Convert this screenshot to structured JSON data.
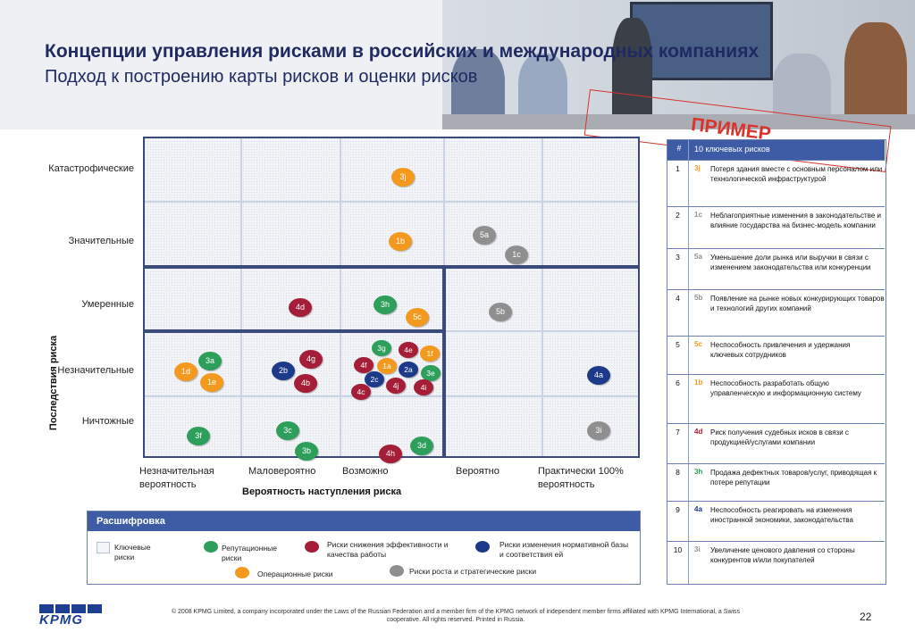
{
  "header": {
    "title_line1": "Концепции управления рисками в российских и международных компаниях",
    "title_line2": "Подход к построению карты рисков и оценки рисков",
    "stamp": "ПРИМЕР"
  },
  "matrix": {
    "y_axis_label": "Последствия риска",
    "x_axis_label": "Вероятность наступления риска",
    "rows": [
      "Катастрофические",
      "Значительные",
      "Умеренные",
      "Незначительные",
      "Ничтожные"
    ],
    "columns": [
      "Незначительная вероятность",
      "Маловероятно",
      "Возможно",
      "Вероятно",
      "Практически 100% вероятность"
    ],
    "colors": {
      "reputational": "#2e9e5b",
      "operational": "#f39a1e",
      "efficiency": "#a51d36",
      "regulatory": "#1d3a8a",
      "strategic": "#8f8f8f"
    },
    "risks": [
      {
        "id": "3j",
        "type": "operational"
      },
      {
        "id": "1b",
        "type": "operational"
      },
      {
        "id": "5a",
        "type": "strategic"
      },
      {
        "id": "1c",
        "type": "strategic"
      },
      {
        "id": "4d",
        "type": "efficiency"
      },
      {
        "id": "3h",
        "type": "reputational"
      },
      {
        "id": "5c",
        "type": "operational"
      },
      {
        "id": "5b",
        "type": "strategic"
      },
      {
        "id": "3a",
        "type": "reputational"
      },
      {
        "id": "1d",
        "type": "operational"
      },
      {
        "id": "1e",
        "type": "operational"
      },
      {
        "id": "4g",
        "type": "efficiency"
      },
      {
        "id": "2b",
        "type": "regulatory"
      },
      {
        "id": "4b",
        "type": "efficiency"
      },
      {
        "id": "3g",
        "type": "reputational"
      },
      {
        "id": "4e",
        "type": "efficiency"
      },
      {
        "id": "1f",
        "type": "operational"
      },
      {
        "id": "4f",
        "type": "efficiency"
      },
      {
        "id": "1a",
        "type": "operational"
      },
      {
        "id": "2a",
        "type": "regulatory"
      },
      {
        "id": "3e",
        "type": "reputational"
      },
      {
        "id": "2c",
        "type": "regulatory"
      },
      {
        "id": "4c",
        "type": "efficiency"
      },
      {
        "id": "4j",
        "type": "efficiency"
      },
      {
        "id": "4i",
        "type": "efficiency"
      },
      {
        "id": "4a",
        "type": "regulatory"
      },
      {
        "id": "3f",
        "type": "reputational"
      },
      {
        "id": "3c",
        "type": "reputational"
      },
      {
        "id": "3b",
        "type": "reputational"
      },
      {
        "id": "4h",
        "type": "efficiency"
      },
      {
        "id": "3d",
        "type": "reputational"
      },
      {
        "id": "3i",
        "type": "strategic"
      }
    ]
  },
  "legend": {
    "title": "Расшифровка",
    "key_risks": "Ключевые риски",
    "reputational": "Репутационные риски",
    "operational": "Операционные риски",
    "efficiency": "Риски снижения эффективности и качества работы",
    "regulatory": "Риски изменения нормативной базы и соответствия ей",
    "strategic": "Риски роста и стратегические риски"
  },
  "risk_table": {
    "num_header": "#",
    "title": "10 ключевых рисков",
    "rows": [
      {
        "num": "1",
        "code": "3j",
        "type": "operational",
        "text": "Потеря здания вместе с основным персоналом или технологической инфраструктурой"
      },
      {
        "num": "2",
        "code": "1c",
        "type": "strategic",
        "text": "Неблагоприятные изменения в законодательстве и влияние государства на бизнес-модель компании"
      },
      {
        "num": "3",
        "code": "5a",
        "type": "strategic",
        "text": "Уменьшение доли рынка или выручки в связи с изменением законодательства или конкуренции"
      },
      {
        "num": "4",
        "code": "5b",
        "type": "strategic",
        "text": "Появление на рынке новых конкурирующих товаров и технологий других компаний"
      },
      {
        "num": "5",
        "code": "5c",
        "type": "operational",
        "text": "Неспособность привлечения и удержания ключевых сотрудников"
      },
      {
        "num": "6",
        "code": "1b",
        "type": "operational",
        "text": "Неспособность разработать общую управленческую и информационную систему"
      },
      {
        "num": "7",
        "code": "4d",
        "type": "efficiency",
        "text": "Риск получения судебных исков в связи с продукцией/услугами компании"
      },
      {
        "num": "8",
        "code": "3h",
        "type": "reputational",
        "text": "Продажа дефектных товаров/услуг, приводящая к потере репутации"
      },
      {
        "num": "9",
        "code": "4a",
        "type": "regulatory",
        "text": "Неспособность реагировать на изменения иностранной экономики, законодательства"
      },
      {
        "num": "10",
        "code": "3i",
        "type": "strategic",
        "text": "Увеличение ценового давления со стороны конкурентов и/или покупателей"
      }
    ]
  },
  "footer": {
    "logo": "KPMG",
    "note": "© 2008 KPMG Limited, a company incorporated under the Laws of the Russian Federation and a member firm of the KPMG network of independent member firms affiliated with KPMG International, a Swiss cooperative. All rights reserved. Printed in Russia.",
    "page": "22"
  }
}
